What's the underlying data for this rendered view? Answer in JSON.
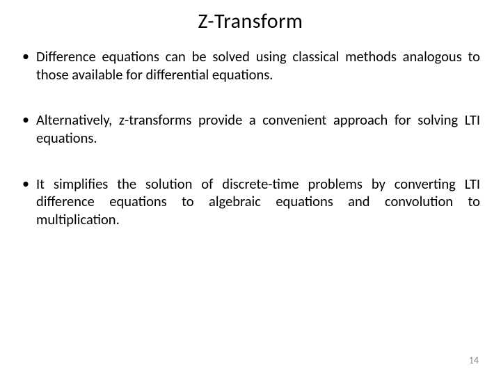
{
  "title": "Z-Transform",
  "bullets": [
    "Difference equations can be solved using classical methods analogous to those available for differential equations.",
    "Alternatively, z-transforms provide a convenient approach for solving LTI equations.",
    "It simplifies the solution of discrete-time problems by converting LTI difference equations to algebraic equations and convolution to multiplication."
  ],
  "page_number": "14",
  "colors": {
    "background": "#ffffff",
    "text": "#000000",
    "page_number": "#888888"
  },
  "typography": {
    "title_fontsize": 30,
    "body_fontsize": 20.5,
    "pagenum_fontsize": 14,
    "font_family": "Calibri"
  }
}
